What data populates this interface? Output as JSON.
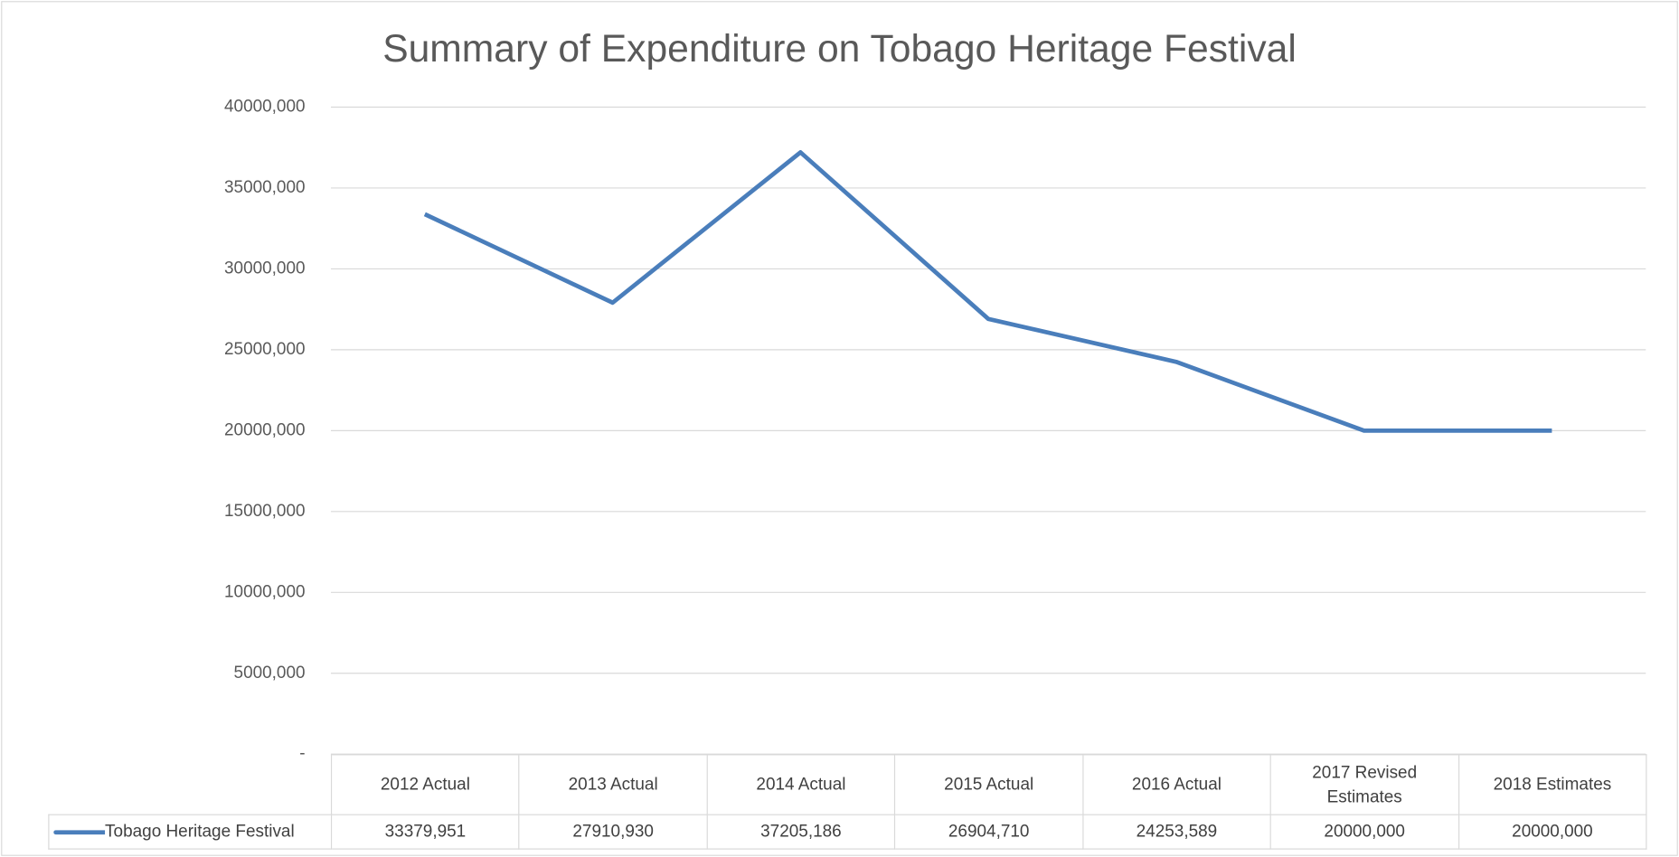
{
  "chart_data": {
    "type": "line",
    "title": "Summary of Expenditure on Tobago Heritage Festival",
    "categories": [
      "2012 Actual",
      "2013 Actual",
      "2014 Actual",
      "2015 Actual",
      "2016 Actual",
      "2017 Revised Estimates",
      "2018 Estimates"
    ],
    "series": [
      {
        "name": "Tobago Heritage Festival",
        "color": "#4a7ebb",
        "values": [
          33379951,
          27910930,
          37205186,
          26904710,
          24253589,
          20000000,
          20000000
        ],
        "value_labels": [
          "33379,951",
          "27910,930",
          "37205,186",
          "26904,710",
          "24253,589",
          "20000,000",
          "20000,000"
        ]
      }
    ],
    "ylim": [
      0,
      40000000
    ],
    "yticks": [
      {
        "value": 0,
        "label": "-"
      },
      {
        "value": 5000000,
        "label": "5000,000"
      },
      {
        "value": 10000000,
        "label": "10000,000"
      },
      {
        "value": 15000000,
        "label": "15000,000"
      },
      {
        "value": 20000000,
        "label": "20000,000"
      },
      {
        "value": 25000000,
        "label": "25000,000"
      },
      {
        "value": 30000000,
        "label": "30000,000"
      },
      {
        "value": 35000000,
        "label": "35000,000"
      },
      {
        "value": 40000000,
        "label": "40000,000"
      }
    ],
    "grid": true
  }
}
